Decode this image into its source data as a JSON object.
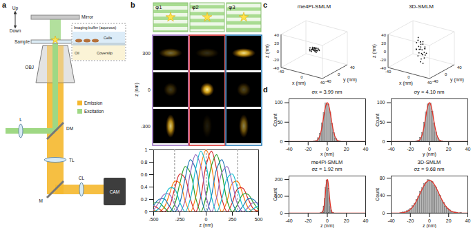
{
  "figure": {
    "panel_labels": [
      "a",
      "b",
      "c",
      "d"
    ],
    "diagram": {
      "labels": {
        "up": "Up",
        "down": "Down",
        "mirror": "Mirror",
        "sample": "Sample",
        "buffer": "Imaging buffer (aqueous)",
        "cells": "Cells",
        "oil": "Oil",
        "coverslip": "Coverslip",
        "objective": "OBJ",
        "lens": "L",
        "dichroic": "DM",
        "tube_lens": "TL",
        "fold_mirror": "M",
        "cylindrical_lens": "CL",
        "camera": "CAM"
      },
      "legend": [
        {
          "name": "Emission",
          "color": "#f5b82e"
        },
        {
          "name": "Excitation",
          "color": "#9fd884"
        }
      ]
    },
    "phase_images": {
      "phases": [
        "φ1",
        "φ2",
        "φ3"
      ],
      "column_colors": [
        "#9467bd",
        "#d62728",
        "#1f77b4"
      ],
      "z": [
        300,
        0,
        -300
      ],
      "ylabel": "z (nm)",
      "intensity": [
        [
          0.45,
          0.2,
          0.95
        ],
        [
          0.25,
          1,
          0.3
        ],
        [
          0.85,
          0.12,
          0.55
        ]
      ]
    }
  },
  "chart_data": [
    {
      "type": "line",
      "xlabel": "z (nm)",
      "x": [
        -500,
        -450,
        -400,
        -350,
        -300,
        -250,
        -200,
        -150,
        -100,
        -50,
        0,
        50,
        100,
        150,
        200,
        250,
        300,
        350,
        400,
        450,
        500
      ],
      "series": [
        {
          "color": "#ff7f0e",
          "values": [
            0.03,
            0,
            0.07,
            0.28,
            0.49,
            0.46,
            0.18,
            0,
            0.23,
            0.74,
            1,
            0.74,
            0.23,
            0,
            0.18,
            0.46,
            0.49,
            0.28,
            0.07,
            0,
            0.03
          ]
        },
        {
          "color": "#d62728",
          "values": [
            0.1,
            0.05,
            0,
            0.09,
            0.37,
            0.61,
            0.54,
            0.21,
            0,
            0.25,
            0.75,
            0.98,
            0.69,
            0.21,
            0,
            0.15,
            0.37,
            0.38,
            0.21,
            0.05,
            0
          ]
        },
        {
          "color": "#2ca02c",
          "values": [
            0.14,
            0.15,
            0.07,
            0,
            0.12,
            0.46,
            0.73,
            0.63,
            0.23,
            0,
            0.25,
            0.74,
            0.92,
            0.63,
            0.18,
            0,
            0.12,
            0.28,
            0.28,
            0.15,
            0.03
          ]
        },
        {
          "color": "#1f77b4",
          "values": [
            0.1,
            0.2,
            0.21,
            0.09,
            0,
            0.15,
            0.54,
            0.84,
            0.69,
            0.25,
            0,
            0.25,
            0.69,
            0.84,
            0.54,
            0.15,
            0,
            0.09,
            0.21,
            0.2,
            0.1
          ]
        },
        {
          "color": "#9467bd",
          "values": [
            0.03,
            0.15,
            0.28,
            0.28,
            0.12,
            0,
            0.18,
            0.63,
            0.92,
            0.74,
            0.25,
            0,
            0.23,
            0.63,
            0.73,
            0.46,
            0.12,
            0,
            0.07,
            0.15,
            0.14
          ]
        },
        {
          "color": "#17becf",
          "values": [
            0,
            0.05,
            0.21,
            0.38,
            0.37,
            0.15,
            0,
            0.21,
            0.69,
            0.98,
            0.75,
            0.25,
            0,
            0.21,
            0.54,
            0.61,
            0.37,
            0.09,
            0,
            0.05,
            0.1
          ]
        }
      ],
      "xlim": [
        -500,
        500
      ],
      "xticks": [
        -500,
        -250,
        0,
        250,
        500
      ],
      "ylim": [
        0,
        1
      ],
      "yticks": [
        0,
        0.2,
        0.4,
        0.6,
        0.8,
        1
      ],
      "line_style": "dashed"
    },
    {
      "type": "scatter3d",
      "title": "me4Pi-SMLM",
      "xlabel": "x (nm)",
      "ylabel": "y (nm)",
      "zlabel": "z (nm)",
      "xlim": [
        -40,
        40
      ],
      "ylim": [
        -40,
        40
      ],
      "zlim": [
        -40,
        40
      ],
      "xticks": [
        -40,
        0,
        40
      ],
      "yticks": [
        -40,
        0,
        40
      ],
      "zticks": [
        -40,
        -20,
        0,
        20,
        40
      ],
      "color": "#111111",
      "points": [
        [
          2.1,
          -3.4,
          0.8
        ],
        [
          -4.5,
          1.2,
          -1.9
        ],
        [
          0.3,
          5.6,
          1.2
        ],
        [
          6.2,
          -0.8,
          -0.5
        ],
        [
          -1.7,
          -2.9,
          2.7
        ],
        [
          3.8,
          3.1,
          -1.4
        ],
        [
          -6.1,
          -4.2,
          0.3
        ],
        [
          1.4,
          0.6,
          -3.1
        ],
        [
          -2.8,
          6.4,
          1.6
        ],
        [
          4.9,
          -5.3,
          -0.9
        ],
        [
          -0.6,
          -0.4,
          0.1
        ],
        [
          7.5,
          2.2,
          2.2
        ],
        [
          -3.9,
          -7.1,
          -1.1
        ],
        [
          0.9,
          -1.8,
          3.6
        ],
        [
          -5.2,
          3.7,
          -2.6
        ],
        [
          2.6,
          7.8,
          0.5
        ],
        [
          -8.3,
          0.4,
          1.3
        ],
        [
          5.4,
          -2.5,
          -3.8
        ],
        [
          -1.1,
          4.3,
          -0.2
        ],
        [
          3.2,
          -6.6,
          1.9
        ],
        [
          -4.4,
          -1.5,
          -1.6
        ],
        [
          1.8,
          2.9,
          2.9
        ],
        [
          -2.2,
          -5.0,
          0.7
        ],
        [
          6.8,
          5.1,
          -2.1
        ],
        [
          -7.0,
          6.0,
          0.9
        ],
        [
          0.1,
          -9.2,
          -0.6
        ],
        [
          -3.3,
          2.0,
          3.1
        ],
        [
          4.1,
          0.9,
          -1.3
        ],
        [
          -0.2,
          3.3,
          -4.2
        ],
        [
          2.9,
          -0.1,
          0.4
        ]
      ]
    },
    {
      "type": "scatter3d",
      "title": "3D-SMLM",
      "xlabel": "x (nm)",
      "ylabel": "y (nm)",
      "zlabel": "z (nm)",
      "xlim": [
        -40,
        40
      ],
      "ylim": [
        -40,
        40
      ],
      "zlim": [
        -40,
        40
      ],
      "xticks": [
        -40,
        0,
        40
      ],
      "yticks": [
        -40,
        0,
        40
      ],
      "zticks": [
        -40,
        -20,
        0,
        20,
        40
      ],
      "color": "#111111",
      "points": [
        [
          1.5,
          2.8,
          12.4
        ],
        [
          -3.7,
          -1.0,
          -8.6
        ],
        [
          4.6,
          -4.9,
          3.1
        ],
        [
          -0.8,
          6.1,
          -15.2
        ],
        [
          2.9,
          0.7,
          19.8
        ],
        [
          -5.8,
          3.4,
          -2.7
        ],
        [
          0.4,
          -2.2,
          7.5
        ],
        [
          6.5,
          1.9,
          -11.9
        ],
        [
          -2.4,
          -6.3,
          24.3
        ],
        [
          3.3,
          4.4,
          -21.0
        ],
        [
          -1.3,
          -0.5,
          0.9
        ],
        [
          -7.2,
          -3.1,
          15.6
        ],
        [
          5.1,
          -7.4,
          -4.8
        ],
        [
          -4.0,
          5.5,
          9.2
        ],
        [
          1.0,
          -3.8,
          -27.5
        ],
        [
          7.9,
          -1.6,
          5.7
        ],
        [
          -6.4,
          0.2,
          -17.3
        ],
        [
          2.2,
          8.3,
          -0.6
        ],
        [
          -0.1,
          -8.0,
          11.0
        ],
        [
          4.3,
          2.5,
          -6.4
        ],
        [
          -3.0,
          -4.6,
          30.2
        ],
        [
          0.7,
          3.7,
          -13.5
        ],
        [
          -5.5,
          -6.9,
          2.4
        ],
        [
          3.6,
          -0.3,
          -31.8
        ],
        [
          -2.0,
          1.3,
          17.9
        ],
        [
          6.0,
          6.7,
          -9.7
        ],
        [
          -8.1,
          -2.0,
          -1.8
        ],
        [
          1.9,
          -5.7,
          21.6
        ],
        [
          -0.5,
          0.8,
          -23.2
        ],
        [
          4.8,
          4.0,
          6.3
        ]
      ]
    },
    {
      "type": "histogram",
      "annotation": "σx = 3.99 nm",
      "xlabel": "x (nm)",
      "ylabel": "Count",
      "bins": [
        -16,
        -14,
        -12,
        -10,
        -8,
        -6,
        -4,
        -2,
        0,
        2,
        4,
        6,
        8,
        10,
        12,
        14,
        16
      ],
      "counts": [
        0,
        1,
        2,
        9,
        20,
        47,
        74,
        99,
        95,
        76,
        45,
        22,
        8,
        2,
        1,
        0
      ],
      "fit": {
        "mean": 0,
        "sigma": 3.99,
        "peak": 100
      },
      "color": "#b5b5b5",
      "fit_color": "#e0342a",
      "xlim": [
        -40,
        40
      ],
      "xticks": [
        -40,
        -20,
        0,
        20,
        40
      ],
      "ylim": [
        0,
        110
      ],
      "yticks": [
        0,
        50,
        100
      ]
    },
    {
      "type": "histogram",
      "annotation": "σy = 4.10 nm",
      "xlabel": "y (nm)",
      "ylabel": "Count",
      "bins": [
        -16,
        -14,
        -12,
        -10,
        -8,
        -6,
        -4,
        -2,
        0,
        2,
        4,
        6,
        8,
        10,
        12,
        14,
        16
      ],
      "counts": [
        0,
        1,
        3,
        10,
        22,
        49,
        76,
        96,
        98,
        77,
        47,
        24,
        9,
        3,
        1,
        0
      ],
      "fit": {
        "mean": 0,
        "sigma": 4.1,
        "peak": 100
      },
      "color": "#b5b5b5",
      "fit_color": "#e0342a",
      "xlim": [
        -40,
        40
      ],
      "xticks": [
        -40,
        -20,
        0,
        20,
        40
      ],
      "ylim": [
        0,
        110
      ],
      "yticks": [
        0,
        50,
        100
      ]
    },
    {
      "type": "histogram",
      "title": "me4Pi-SMLM",
      "annotation": "σz = 1.92 nm",
      "xlabel": "z (nm)",
      "ylabel": "Count",
      "bins": [
        -8,
        -7,
        -6,
        -5,
        -4,
        -3,
        -2,
        -1,
        0,
        1,
        2,
        3,
        4,
        5,
        6,
        7,
        8
      ],
      "counts": [
        0,
        1,
        4,
        12,
        39,
        84,
        149,
        195,
        190,
        145,
        88,
        37,
        14,
        3,
        1,
        0
      ],
      "fit": {
        "mean": 0,
        "sigma": 1.92,
        "peak": 200
      },
      "color": "#b5b5b5",
      "fit_color": "#e0342a",
      "xlim": [
        -40,
        40
      ],
      "xticks": [
        -40,
        -20,
        0,
        20,
        40
      ],
      "ylim": [
        0,
        220
      ],
      "yticks": [
        0,
        100,
        200
      ]
    },
    {
      "type": "histogram",
      "title": "3D-SMLM",
      "annotation": "σz = 9.68 nm",
      "xlabel": "z (nm)",
      "ylabel": "Count",
      "bins": [
        -34,
        -32,
        -30,
        -28,
        -26,
        -24,
        -22,
        -20,
        -18,
        -16,
        -14,
        -12,
        -10,
        -8,
        -6,
        -4,
        -2,
        0,
        2,
        4,
        6,
        8,
        10,
        12,
        14,
        16,
        18,
        20,
        22,
        24,
        26,
        28,
        30,
        32,
        34
      ],
      "counts": [
        0,
        0,
        1,
        2,
        3,
        5,
        7,
        10,
        17,
        22,
        31,
        38,
        50,
        57,
        67,
        70,
        76,
        73,
        72,
        64,
        59,
        48,
        40,
        29,
        24,
        15,
        11,
        8,
        4,
        2,
        2,
        1,
        0,
        1
      ],
      "fit": {
        "mean": 0,
        "sigma": 9.68,
        "peak": 75
      },
      "color": "#b5b5b5",
      "fit_color": "#e0342a",
      "xlim": [
        -40,
        40
      ],
      "xticks": [
        -40,
        -20,
        0,
        20,
        40
      ],
      "ylim": [
        0,
        85
      ],
      "yticks": [
        0,
        40,
        80
      ]
    }
  ]
}
